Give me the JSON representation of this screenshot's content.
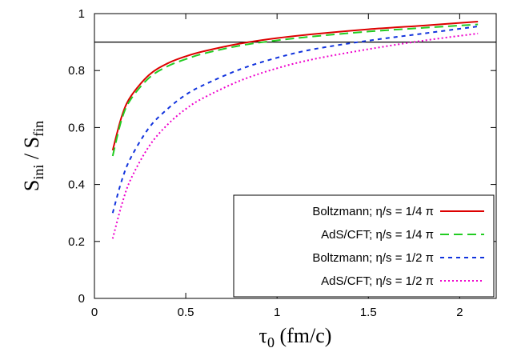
{
  "chart_data": {
    "type": "line",
    "xlabel": {
      "main": "τ",
      "sub": "0",
      "rest": " (fm/c)"
    },
    "ylabel": {
      "main1": "S",
      "sub1": "ini",
      "sep": " / ",
      "main2": "S",
      "sub2": "fin"
    },
    "xlim": [
      0,
      2.2
    ],
    "ylim": [
      0,
      1
    ],
    "xticks": [
      0,
      0.5,
      1,
      1.5,
      2
    ],
    "xtick_labels": [
      "0",
      "0.5",
      "1",
      "1.5",
      "2"
    ],
    "yticks": [
      0,
      0.2,
      0.4,
      0.6,
      0.8,
      1
    ],
    "ytick_labels": [
      "0",
      "0.2",
      "0.4",
      "0.6",
      "0.8",
      "1"
    ],
    "grid": false,
    "legend_position": "bottom-right",
    "reference_line": {
      "y": 0.9,
      "color": "#000000"
    },
    "x": [
      0.1,
      0.15,
      0.2,
      0.3,
      0.4,
      0.5,
      0.6,
      0.8,
      1.0,
      1.2,
      1.5,
      1.8,
      2.1
    ],
    "series": [
      {
        "name": "Boltzmann;  η/s = 1/4 π",
        "color": "#dd0000",
        "dash": "solid",
        "values": [
          0.52,
          0.64,
          0.71,
          0.785,
          0.825,
          0.85,
          0.868,
          0.895,
          0.914,
          0.928,
          0.945,
          0.958,
          0.972
        ]
      },
      {
        "name": "AdS/CFT;  η/s = 1/4 π",
        "color": "#22cc22",
        "dash": "long-dash",
        "values": [
          0.5,
          0.63,
          0.7,
          0.775,
          0.815,
          0.84,
          0.86,
          0.888,
          0.906,
          0.92,
          0.937,
          0.95,
          0.962
        ]
      },
      {
        "name": "Boltzmann;  η/s = 1/2 π",
        "color": "#1133dd",
        "dash": "short-dash",
        "values": [
          0.3,
          0.415,
          0.495,
          0.6,
          0.665,
          0.715,
          0.75,
          0.805,
          0.845,
          0.875,
          0.905,
          0.93,
          0.955
        ]
      },
      {
        "name": "AdS/CFT;  η/s = 1/2 π",
        "color": "#ee00cc",
        "dash": "dotted",
        "values": [
          0.21,
          0.33,
          0.42,
          0.535,
          0.61,
          0.665,
          0.705,
          0.765,
          0.808,
          0.84,
          0.875,
          0.905,
          0.93
        ]
      }
    ]
  }
}
